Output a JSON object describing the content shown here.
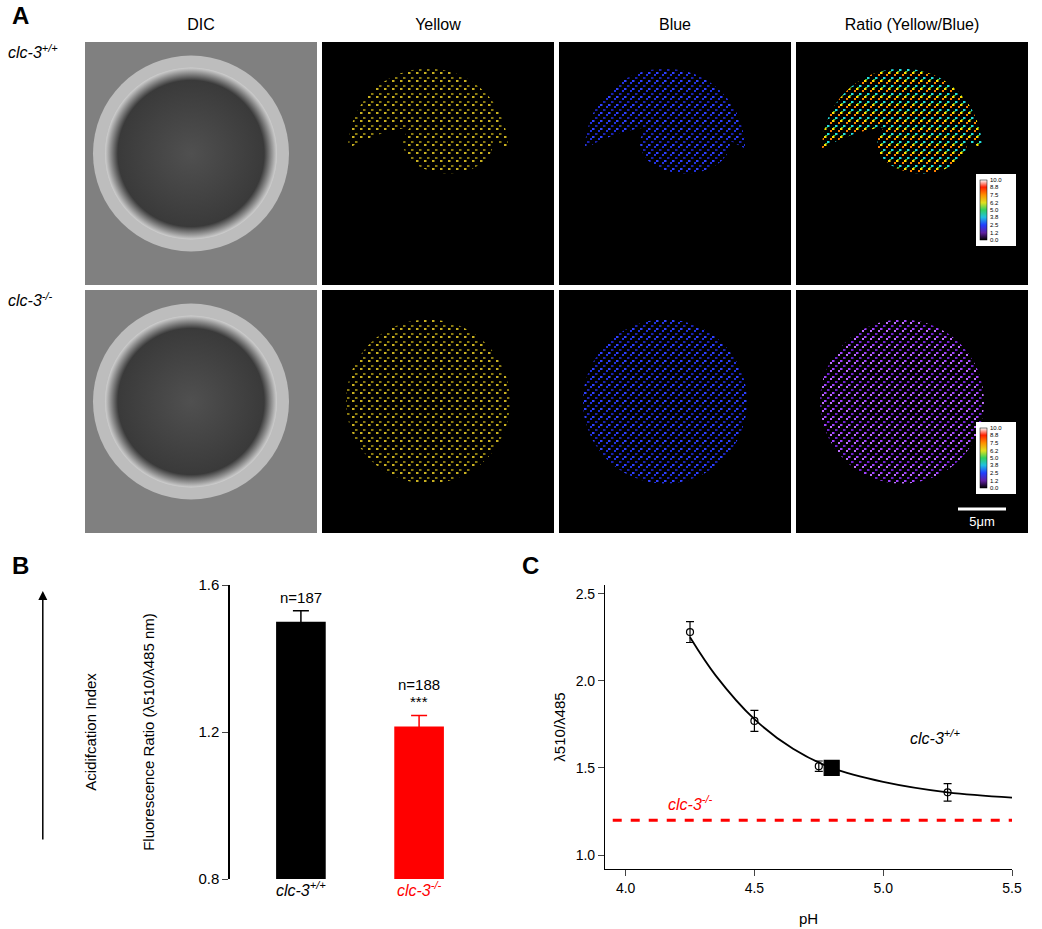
{
  "panels": [
    "A",
    "B",
    "C"
  ],
  "image_panel": {
    "columns": [
      "DIC",
      "Yellow",
      "Blue",
      "Ratio (Yellow/Blue)"
    ],
    "rows": [
      "clc-3+/+",
      "clc-3-/-"
    ],
    "colorbar_range": [
      0,
      10
    ],
    "colorbar_ticks": [
      {
        "value": 0,
        "label": "0.0"
      },
      {
        "value": 1.2,
        "label": "1.2"
      },
      {
        "value": 2.5,
        "label": "2.5"
      },
      {
        "value": 3.8,
        "label": "3.8"
      },
      {
        "value": 5,
        "label": "5.0"
      },
      {
        "value": 6.2,
        "label": "6.2"
      },
      {
        "value": 7.5,
        "label": "7.5"
      },
      {
        "value": 8.8,
        "label": "8.8"
      },
      {
        "value": 10,
        "label": "10.0"
      }
    ],
    "scale_bar": "5μm"
  },
  "chart_data": [
    {
      "type": "bar",
      "categories": [
        "clc-3+/+",
        "clc-3-/-"
      ],
      "values": [
        1.5,
        1.215
      ],
      "errors": [
        0.03,
        0.03
      ],
      "colors": [
        "#000000",
        "#ff0000"
      ],
      "ylim": [
        0.8,
        1.6
      ],
      "yticks": [
        0.8,
        1.2,
        1.6
      ],
      "y_labels": [
        "Acidifcation Index",
        "Fluorescence Ratio (λ510/λ485 nm)"
      ],
      "annotations": [
        {
          "category": "clc-3+/+",
          "text": "n=187"
        },
        {
          "category": "clc-3-/-",
          "text": "***"
        },
        {
          "category": "clc-3-/-",
          "text": "n=188"
        }
      ],
      "grid": false
    },
    {
      "type": "line",
      "xlabel": "pH",
      "ylabel": "λ510/λ485",
      "xlim": [
        3.92,
        5.5
      ],
      "xticks": [
        {
          "value": 4,
          "label": "4.0"
        },
        {
          "value": 4.5,
          "label": "4.5"
        },
        {
          "value": 5,
          "label": "5.0"
        },
        {
          "value": 5.5,
          "label": "5.5"
        }
      ],
      "ylim": [
        0.92,
        2.55
      ],
      "yticks": [
        {
          "value": 1,
          "label": "1.0"
        },
        {
          "value": 1.5,
          "label": "1.5"
        },
        {
          "value": 2,
          "label": "2.0"
        },
        {
          "value": 2.5,
          "label": "2.5"
        }
      ],
      "grid": false,
      "series": [
        {
          "type": "line",
          "color": "#000000",
          "line_style": "solid",
          "x": [
            4.25,
            4.35,
            4.5,
            4.65,
            4.8,
            5.0,
            5.25,
            5.5
          ],
          "values": [
            2.25,
            2.03,
            1.78,
            1.61,
            1.5,
            1.42,
            1.36,
            1.33
          ]
        },
        {
          "type": "scatter",
          "color": "#000000",
          "marker": "circle-open",
          "x": [
            4.25,
            4.5,
            4.75,
            5.25
          ],
          "values": [
            2.28,
            1.77,
            1.51,
            1.36
          ],
          "errors": [
            0.06,
            0.06,
            0.03,
            0.05
          ]
        },
        {
          "type": "scatter",
          "color": "#000000",
          "marker": "square",
          "x": [
            4.8
          ],
          "values": [
            1.5
          ]
        },
        {
          "type": "line",
          "color": "#ff0000",
          "line_style": "dash",
          "x": [
            3.95,
            5.5
          ],
          "values": [
            1.2,
            1.2
          ]
        }
      ],
      "annotations": [
        {
          "text": "clc-3+/+",
          "x": 5.2,
          "y": 1.68,
          "color": "#000000"
        },
        {
          "text": "clc-3-/-",
          "x": 4.25,
          "y": 1.3,
          "color": "#ff0000"
        }
      ]
    }
  ]
}
